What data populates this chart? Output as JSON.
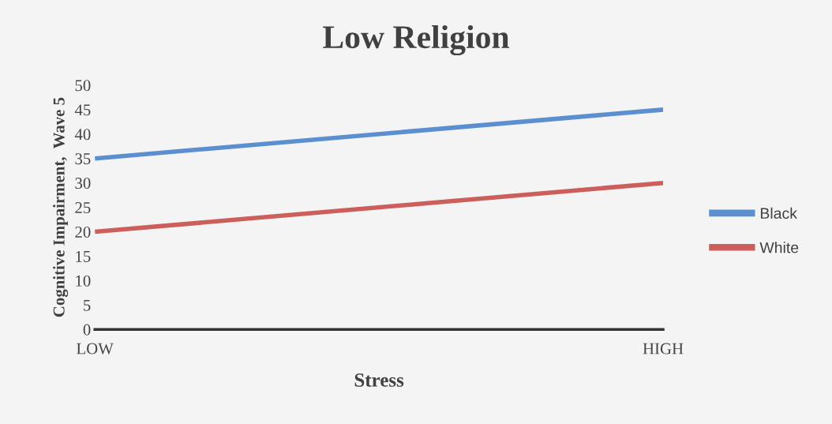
{
  "chart_data": {
    "type": "line",
    "title": "Low Religion",
    "xlabel": "Stress",
    "ylabel": "Cognitive Impairment,  Wave 5",
    "categories": [
      "LOW",
      "HIGH"
    ],
    "series": [
      {
        "name": "Black",
        "color": "#5b8fd0",
        "values": [
          35,
          45
        ]
      },
      {
        "name": "White",
        "color": "#cc5f5c",
        "values": [
          20,
          30
        ]
      }
    ],
    "ylim": [
      0,
      50
    ],
    "yticks": [
      0,
      5,
      10,
      15,
      20,
      25,
      30,
      35,
      40,
      45,
      50
    ],
    "grid": false,
    "legend": "right",
    "marker": "none",
    "line_style": "solid"
  }
}
